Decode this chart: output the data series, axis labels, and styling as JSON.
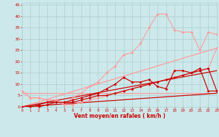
{
  "background_color": "#cce8ea",
  "grid_color": "#aacccc",
  "xlabel": "Vent moyen/en rafales ( km/h )",
  "xlabel_color": "#cc0000",
  "tick_color": "#cc0000",
  "xlim": [
    0,
    23
  ],
  "ylim": [
    0,
    46
  ],
  "yticks": [
    0,
    5,
    10,
    15,
    20,
    25,
    30,
    35,
    40,
    45
  ],
  "xticks": [
    0,
    1,
    2,
    3,
    4,
    5,
    6,
    7,
    8,
    9,
    10,
    11,
    12,
    13,
    14,
    15,
    16,
    17,
    18,
    19,
    20,
    21,
    22,
    23
  ],
  "series": [
    {
      "x": [
        0,
        1,
        2,
        3,
        4,
        5,
        6,
        7,
        8,
        9,
        10,
        11,
        12,
        13,
        14,
        15,
        16,
        17,
        18,
        19,
        20,
        21,
        22,
        23
      ],
      "y": [
        7,
        4,
        4,
        3,
        3,
        1,
        4,
        6,
        9,
        11,
        15,
        18,
        23,
        24,
        28,
        35,
        41,
        41,
        34,
        33,
        33,
        25,
        33,
        32
      ],
      "color": "#ff9999",
      "lw": 0.8,
      "marker": "D",
      "ms": 1.8,
      "zorder": 3
    },
    {
      "x": [
        0,
        1,
        2,
        3,
        4,
        5,
        6,
        7,
        8,
        9,
        10,
        11,
        12,
        13,
        14,
        15,
        16,
        17,
        18,
        19,
        20,
        21,
        22,
        23
      ],
      "y": [
        7,
        4,
        4,
        3,
        3,
        1,
        1,
        2,
        3,
        4,
        5,
        6,
        7,
        8,
        9,
        10,
        11,
        12,
        13,
        14,
        15,
        16,
        17,
        26
      ],
      "color": "#ff9999",
      "lw": 0.8,
      "marker": "D",
      "ms": 1.8,
      "zorder": 3
    },
    {
      "x": [
        0,
        1,
        2,
        3,
        4,
        5,
        6,
        7,
        8,
        9,
        10,
        11,
        12,
        13,
        14,
        15,
        16,
        17,
        18,
        19,
        20,
        21,
        22,
        23
      ],
      "y": [
        0,
        0,
        1,
        2,
        2,
        2,
        3,
        4,
        5,
        6,
        8,
        10,
        13,
        11,
        11,
        12,
        9,
        8,
        16,
        16,
        15,
        17,
        7,
        7
      ],
      "color": "#cc0000",
      "lw": 0.9,
      "marker": "D",
      "ms": 1.8,
      "zorder": 4
    },
    {
      "x": [
        0,
        1,
        2,
        3,
        4,
        5,
        6,
        7,
        8,
        9,
        10,
        11,
        12,
        13,
        14,
        15,
        16,
        17,
        18,
        19,
        20,
        21,
        22,
        23
      ],
      "y": [
        0,
        0,
        0,
        1,
        2,
        2,
        2,
        3,
        4,
        5,
        5,
        6,
        7,
        8,
        9,
        10,
        11,
        12,
        13,
        14,
        15,
        16,
        17,
        7
      ],
      "color": "#cc0000",
      "lw": 0.9,
      "marker": "D",
      "ms": 1.8,
      "zorder": 4
    },
    {
      "x": [
        0,
        23
      ],
      "y": [
        0,
        26
      ],
      "color": "#ff9999",
      "lw": 0.9,
      "marker": null,
      "ms": 0,
      "zorder": 2
    },
    {
      "x": [
        0,
        23
      ],
      "y": [
        6,
        6
      ],
      "color": "#ff9999",
      "lw": 0.9,
      "marker": null,
      "ms": 0,
      "zorder": 2
    },
    {
      "x": [
        0,
        23
      ],
      "y": [
        0,
        16
      ],
      "color": "#cc0000",
      "lw": 0.9,
      "marker": null,
      "ms": 0,
      "zorder": 2
    },
    {
      "x": [
        0,
        23
      ],
      "y": [
        0,
        6
      ],
      "color": "#cc0000",
      "lw": 0.9,
      "marker": null,
      "ms": 0,
      "zorder": 2
    }
  ]
}
